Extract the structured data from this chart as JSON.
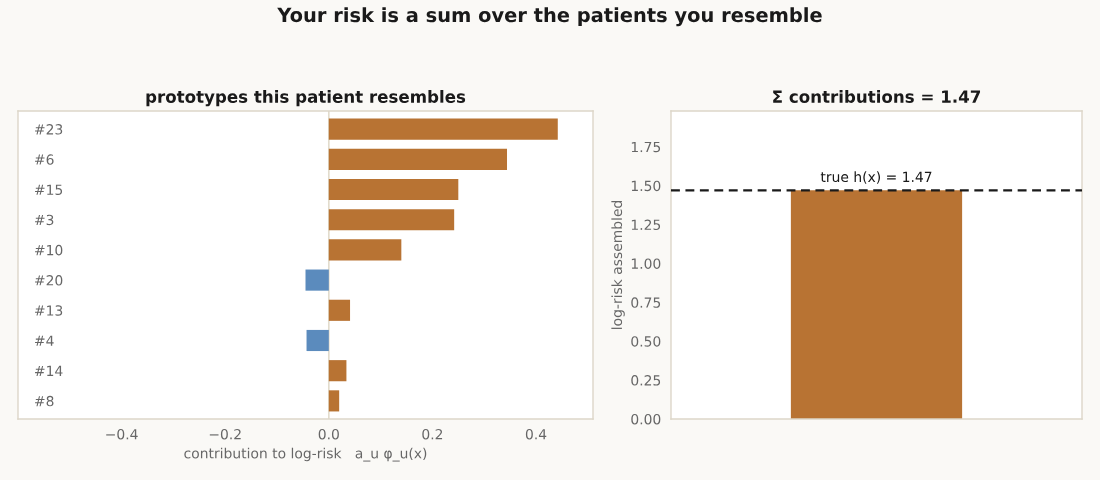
{
  "chart_data": [
    {
      "type": "bar",
      "orientation": "horizontal",
      "title": "Your risk is a sum over the patients you resemble",
      "subtitle": "prototypes this patient resembles",
      "xlabel": "contribution to log-risk   a_u φ_u(x)",
      "categories": [
        "#23",
        "#6",
        "#15",
        "#3",
        "#10",
        "#20",
        "#13",
        "#4",
        "#14",
        "#8"
      ],
      "values": [
        0.442,
        0.344,
        0.25,
        0.242,
        0.14,
        -0.045,
        0.041,
        -0.043,
        0.034,
        0.02
      ],
      "colors": [
        "#b87333",
        "#b87333",
        "#b87333",
        "#b87333",
        "#b87333",
        "#5b8bbd",
        "#b87333",
        "#5b8bbd",
        "#b87333",
        "#b87333"
      ],
      "xlim": [
        -0.6,
        0.51
      ],
      "xticks": [
        {
          "value": -0.4,
          "label": "−0.4"
        },
        {
          "value": -0.2,
          "label": "−0.2"
        },
        {
          "value": 0,
          "label": "0.0"
        },
        {
          "value": 0.2,
          "label": "0.2"
        },
        {
          "value": 0.4,
          "label": "0.4"
        }
      ],
      "ref_lines": [
        {
          "axis": "x",
          "value": 0,
          "color": "#e2dccd"
        }
      ]
    },
    {
      "type": "bar",
      "title": "Σ contributions = 1.47",
      "ylabel": "log-risk assembled",
      "categories": [
        null
      ],
      "values": [
        1.47
      ],
      "color": "#b87333",
      "ylim": [
        0,
        1.98
      ],
      "yticks": [
        {
          "value": 0,
          "label": "0.00"
        },
        0.25,
        {
          "value": 0.5,
          "label": "0.50"
        },
        0.75,
        {
          "value": 1,
          "label": "1.00"
        },
        1.25,
        {
          "value": 1.5,
          "label": "1.50"
        },
        1.75
      ],
      "tick_labels": "y",
      "ref_lines": [
        {
          "axis": "y",
          "value": 1.47,
          "label": "true h(x) = 1.47",
          "color": "#1a1a1a",
          "line_style": "dashed"
        }
      ]
    }
  ]
}
